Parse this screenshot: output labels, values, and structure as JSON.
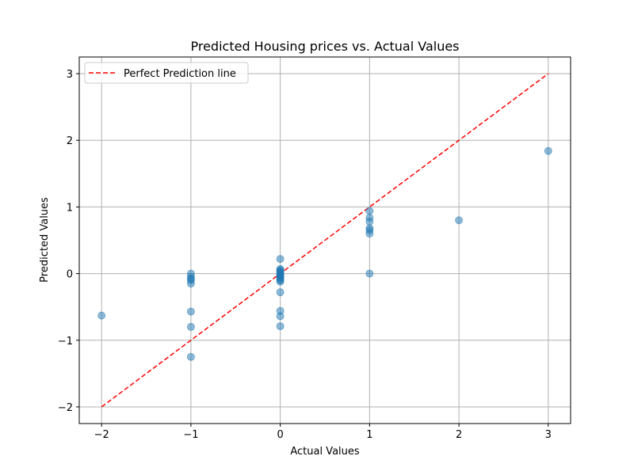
{
  "chart_data": {
    "type": "scatter",
    "title": "Predicted Housing prices vs. Actual Values",
    "xlabel": "Actual Values",
    "ylabel": "Predicted Values",
    "xlim": [
      -2.25,
      3.25
    ],
    "ylim": [
      -2.25,
      3.25
    ],
    "xticks": [
      -2,
      -1,
      0,
      1,
      2,
      3
    ],
    "yticks": [
      -2,
      -1,
      0,
      1,
      2,
      3
    ],
    "xtick_labels": [
      "−2",
      "−1",
      "0",
      "1",
      "2",
      "3"
    ],
    "ytick_labels": [
      "−2",
      "−1",
      "0",
      "1",
      "2",
      "3"
    ],
    "grid": true,
    "legend_position": "top-left",
    "points": {
      "color": "#1f77b4",
      "opacity": 0.5,
      "x": [
        -2,
        -1,
        -1,
        -1,
        -1,
        -1,
        -1,
        -1,
        -1,
        0,
        0,
        0,
        0,
        0,
        0,
        0,
        0,
        0,
        0,
        0,
        0,
        0,
        0,
        0,
        0,
        0,
        1,
        1,
        1,
        1,
        1,
        1,
        1,
        2,
        3
      ],
      "y": [
        -0.63,
        0.0,
        -0.05,
        -0.1,
        -0.15,
        -0.57,
        -0.8,
        -1.25,
        -0.08,
        0.22,
        0.07,
        0.05,
        0.02,
        0.0,
        -0.02,
        -0.05,
        -0.08,
        -0.1,
        -0.12,
        -0.28,
        -0.56,
        -0.64,
        -0.79,
        0.04,
        -0.03,
        -0.06,
        0.94,
        0.84,
        0.78,
        0.68,
        0.65,
        0.6,
        0.0,
        0.8,
        1.84
      ]
    },
    "reference_line": {
      "name": "Perfect Prediction line",
      "color": "#ff0000",
      "x": [
        -2,
        3
      ],
      "y": [
        -2,
        3
      ]
    }
  }
}
